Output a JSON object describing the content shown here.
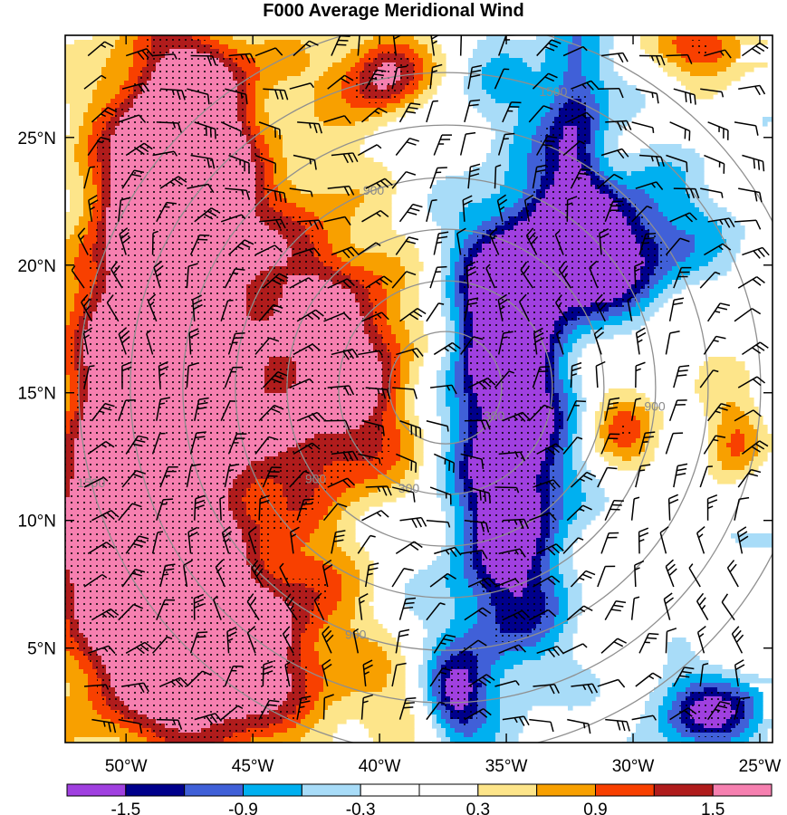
{
  "chart_data": {
    "type": "heatmap",
    "title": "F000 Average Meridional Wind",
    "x_ticks": [
      "50°W",
      "45°W",
      "40°W",
      "35°W",
      "30°W",
      "25°W"
    ],
    "x_tick_values": [
      -50,
      -45,
      -40,
      -35,
      -30,
      -25
    ],
    "y_ticks": [
      "25°N",
      "20°N",
      "15°N",
      "10°N",
      "5°N"
    ],
    "y_tick_values": [
      25,
      20,
      15,
      10,
      5
    ],
    "xlim": [
      -52.4,
      -24.5
    ],
    "ylim": [
      1.3,
      29.0
    ],
    "colorbar": {
      "levels": [
        -1.8,
        -1.5,
        -1.2,
        -0.9,
        -0.6,
        -0.3,
        0,
        0.3,
        0.6,
        0.9,
        1.2,
        1.5,
        1.8
      ],
      "labels": [
        "-1.5",
        "-0.9",
        "-0.3",
        "0.3",
        "0.9",
        "1.5"
      ],
      "label_values": [
        -1.5,
        -0.9,
        -0.3,
        0.3,
        0.9,
        1.5
      ],
      "colors": [
        "#a040e0",
        "#00008c",
        "#4060d8",
        "#00b0f0",
        "#a8dcf8",
        "#ffffff",
        "#ffffff",
        "#fde58a",
        "#f8a000",
        "#f84000",
        "#b01c1c",
        "#f680b0"
      ]
    },
    "range_rings": {
      "center": [
        -37.4,
        15.2
      ],
      "labels": [
        "300",
        "900",
        "1500"
      ]
    },
    "positive_features": [
      {
        "lon": -48.5,
        "lat": 18.5,
        "amp": 2.6,
        "sx": 2.2,
        "sy": 6.5
      },
      {
        "lon": -49.5,
        "lat": 9.0,
        "amp": 2.4,
        "sx": 2.6,
        "sy": 4.5
      },
      {
        "lon": -47.5,
        "lat": 24.0,
        "amp": 2.0,
        "sx": 1.5,
        "sy": 2.8
      },
      {
        "lon": -46.0,
        "lat": 4.0,
        "amp": 1.7,
        "sx": 2.6,
        "sy": 2.2
      },
      {
        "lon": -43.0,
        "lat": 18.0,
        "amp": 1.3,
        "sx": 2.0,
        "sy": 4.2
      },
      {
        "lon": -40.5,
        "lat": 17.0,
        "amp": 1.0,
        "sx": 1.6,
        "sy": 2.2
      },
      {
        "lon": -41.5,
        "lat": 13.0,
        "amp": 0.9,
        "sx": 2.2,
        "sy": 2.0
      },
      {
        "lon": -39.8,
        "lat": 27.5,
        "amp": 1.6,
        "sx": 1.2,
        "sy": 1.2
      },
      {
        "lon": -43.5,
        "lat": 7.0,
        "amp": 0.8,
        "sx": 2.0,
        "sy": 2.0
      },
      {
        "lon": -30.5,
        "lat": 13.5,
        "amp": 0.9,
        "sx": 1.0,
        "sy": 1.2
      },
      {
        "lon": -26.0,
        "lat": 13.0,
        "amp": 1.0,
        "sx": 0.9,
        "sy": 1.3
      },
      {
        "lon": -27.0,
        "lat": 28.5,
        "amp": 1.3,
        "sx": 1.3,
        "sy": 0.9
      },
      {
        "lon": -28.0,
        "lat": 17.5,
        "amp": 0.35,
        "sx": 2.5,
        "sy": 2.0
      },
      {
        "lon": -45.0,
        "lat": 27.5,
        "amp": 0.5,
        "sx": 2.5,
        "sy": 1.2
      },
      {
        "lon": -40.0,
        "lat": 3.0,
        "amp": 0.5,
        "sx": 1.5,
        "sy": 1.5
      }
    ],
    "negative_features": [
      {
        "lon": -34.8,
        "lat": 12.5,
        "amp": -2.2,
        "sx": 1.6,
        "sy": 5.0
      },
      {
        "lon": -32.0,
        "lat": 20.5,
        "amp": -2.1,
        "sx": 2.6,
        "sy": 1.8
      },
      {
        "lon": -35.5,
        "lat": 17.5,
        "amp": -1.0,
        "sx": 1.2,
        "sy": 2.0
      },
      {
        "lon": -32.3,
        "lat": 25.5,
        "amp": -1.3,
        "sx": 0.9,
        "sy": 3.0
      },
      {
        "lon": -35.0,
        "lat": 27.0,
        "amp": -0.5,
        "sx": 1.5,
        "sy": 2.0
      },
      {
        "lon": -37.0,
        "lat": 3.0,
        "amp": -1.4,
        "sx": 0.9,
        "sy": 1.2
      },
      {
        "lon": -27.0,
        "lat": 2.5,
        "amp": -1.5,
        "sx": 1.8,
        "sy": 1.1
      },
      {
        "lon": -36.0,
        "lat": 6.0,
        "amp": -0.4,
        "sx": 2.0,
        "sy": 2.0
      },
      {
        "lon": -24.8,
        "lat": 10.5,
        "amp": -0.5,
        "sx": 1.0,
        "sy": 2.0
      },
      {
        "lon": -29.0,
        "lat": 21.0,
        "amp": -0.35,
        "sx": 3.0,
        "sy": 3.0
      }
    ],
    "wind_barbs": "black barbs on a regular lon/lat grid, predominantly northeasterly-to-easterly"
  }
}
